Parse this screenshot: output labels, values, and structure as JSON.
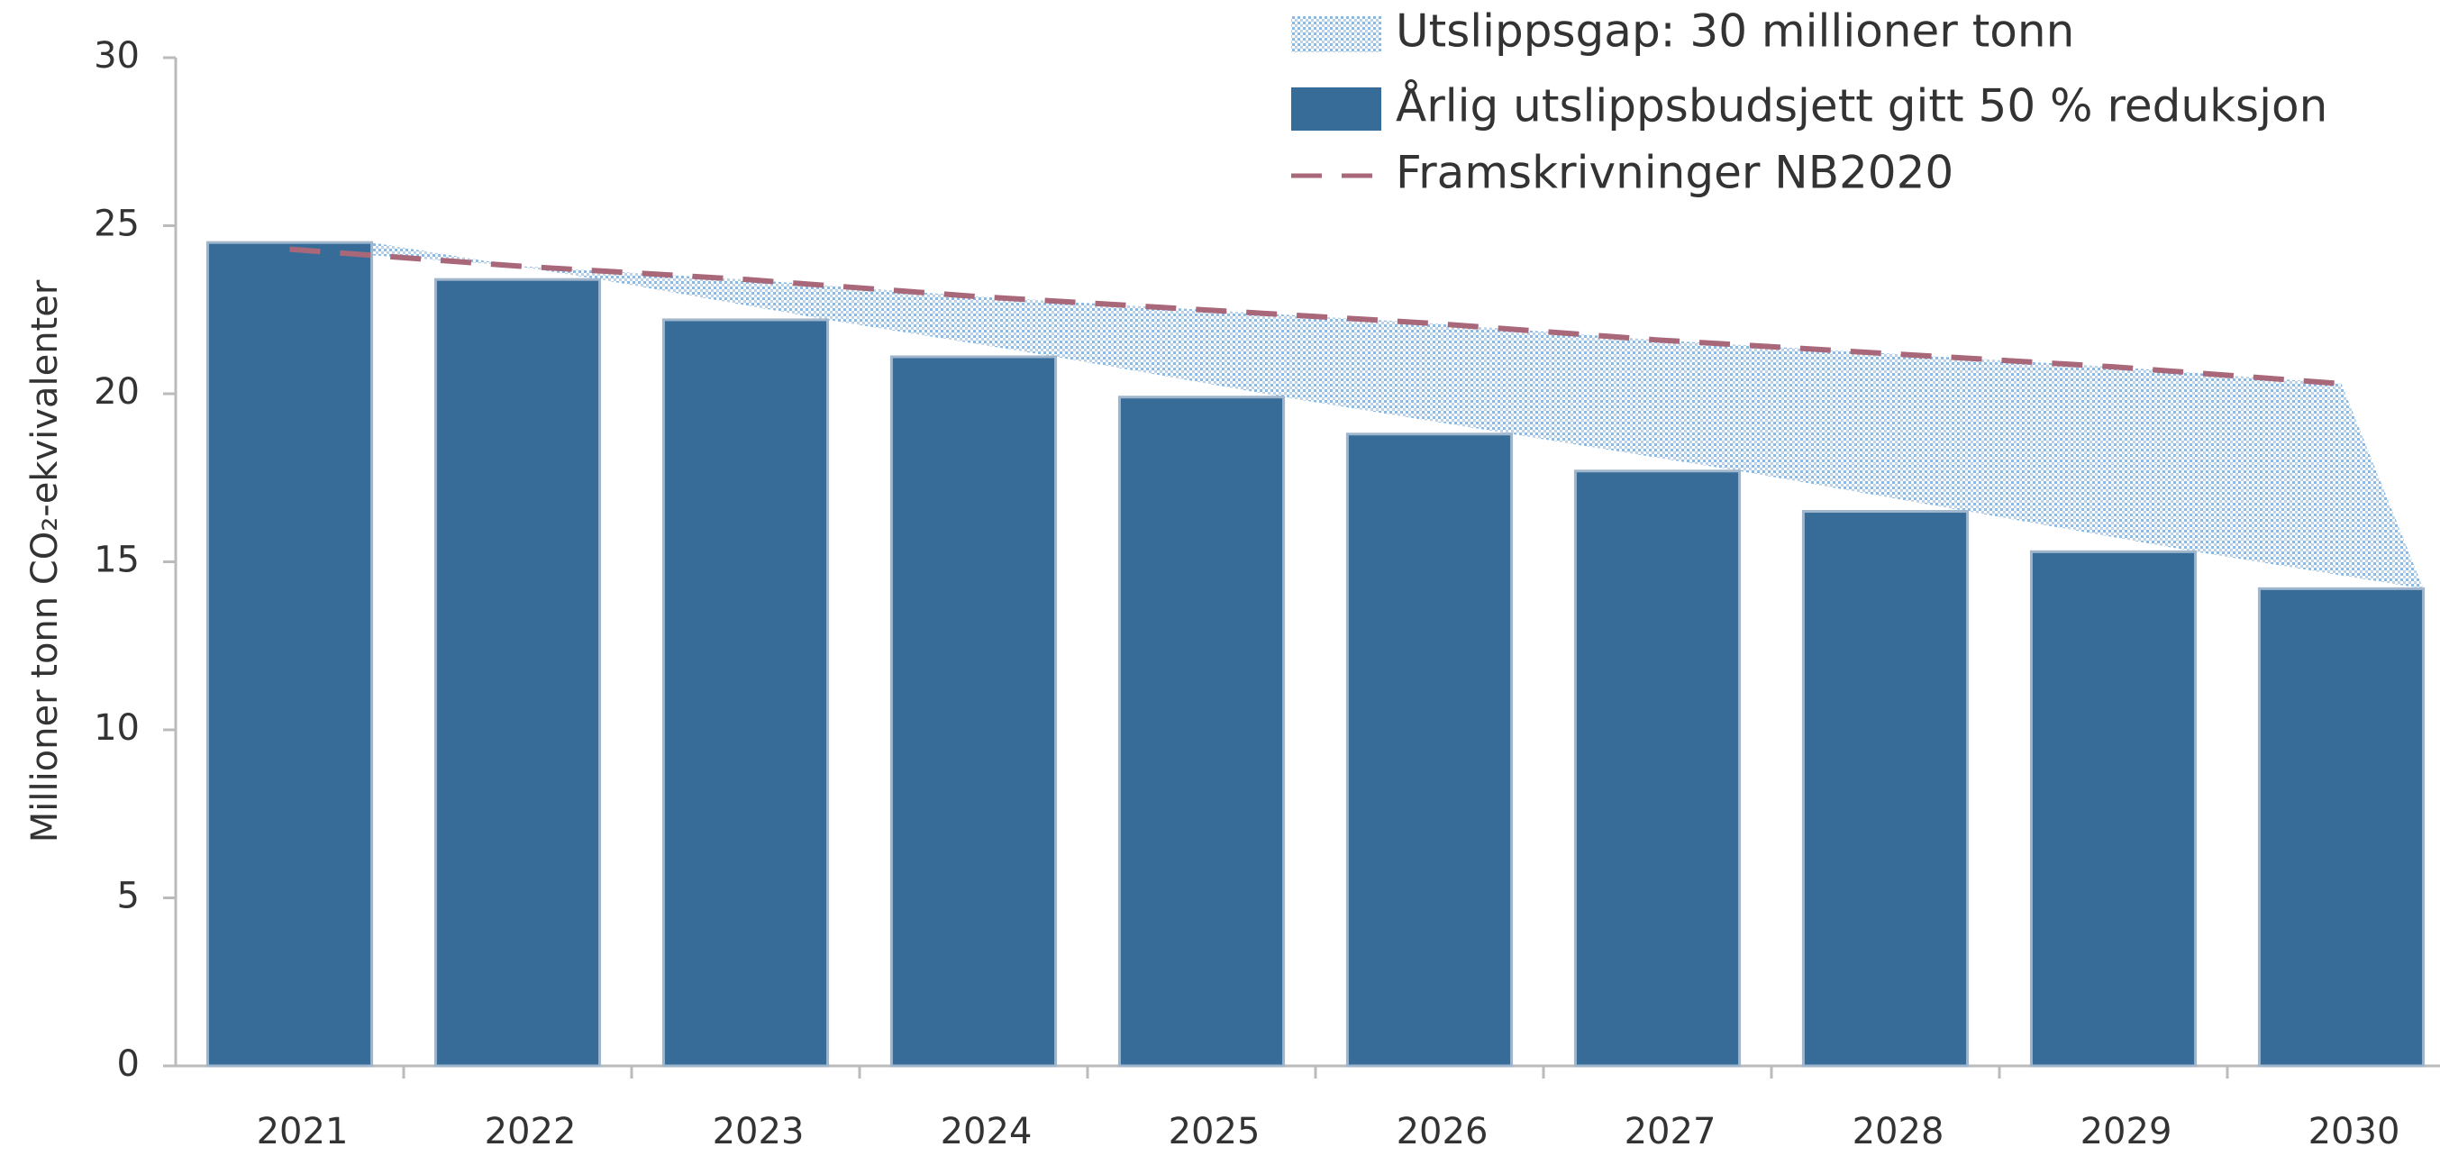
{
  "chart_data": {
    "type": "bar",
    "ylabel": "Millioner tonn CO₂-ekvivalenter",
    "categories": [
      "2021",
      "2022",
      "2023",
      "2024",
      "2025",
      "2026",
      "2027",
      "2028",
      "2029",
      "2030"
    ],
    "series": [
      {
        "name": "Utslippsgap: 30 millioner tonn",
        "type": "area",
        "color": "#9ec3e6"
      },
      {
        "name": "Årlig utslippsbudsjett gitt 50 % reduksjon",
        "type": "bar",
        "color": "#376c99",
        "values": [
          24.5,
          23.4,
          22.2,
          21.1,
          19.9,
          18.8,
          17.7,
          16.5,
          15.3,
          14.2
        ]
      },
      {
        "name": "Framskrivninger NB2020",
        "type": "line",
        "color": "#a8687a",
        "values": [
          24.3,
          23.8,
          23.4,
          22.9,
          22.5,
          22.1,
          21.6,
          21.2,
          20.8,
          20.3
        ]
      }
    ],
    "ylim": [
      0,
      30
    ],
    "yticks": [
      0,
      5,
      10,
      15,
      20,
      25,
      30
    ]
  }
}
